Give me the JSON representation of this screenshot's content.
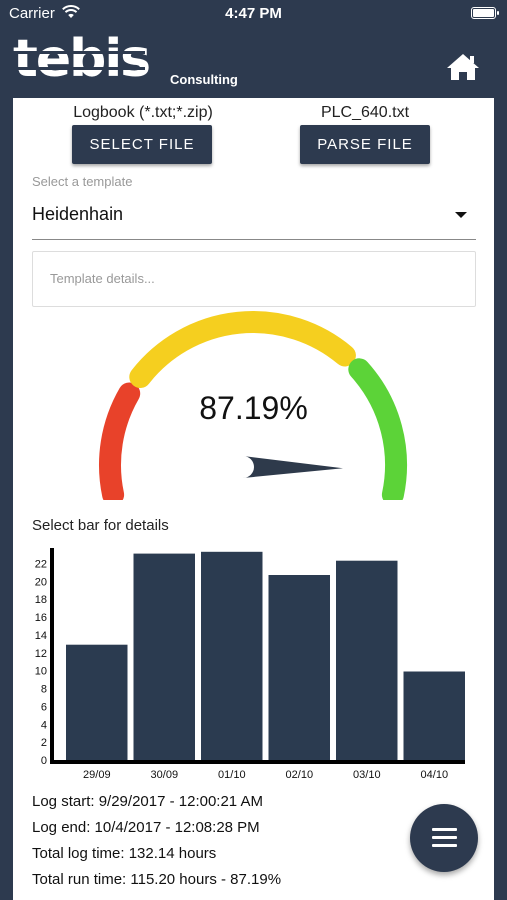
{
  "status_bar": {
    "carrier": "Carrier",
    "time": "4:47 PM"
  },
  "header": {
    "logo": "tebis",
    "subtitle": "Consulting"
  },
  "files": {
    "logbook_label": "Logbook (*.txt;*.zip)",
    "select_button": "SELECT FILE",
    "plc_label": "PLC_640.txt",
    "parse_button": "PARSE FILE"
  },
  "template": {
    "label": "Select a template",
    "selected": "Heidenhain",
    "details_placeholder": "Template details..."
  },
  "gauge": {
    "value_text": "87.19%",
    "value": 87.19,
    "colors": {
      "red": "#e8422a",
      "yellow": "#f5cf1f",
      "green": "#5cd338",
      "needle": "#2e3a4b"
    }
  },
  "chart_caption": "Select bar for details",
  "chart_data": {
    "type": "bar",
    "categories": [
      "29/09",
      "30/09",
      "01/10",
      "02/10",
      "03/10",
      "04/10"
    ],
    "values": [
      12.9,
      23.1,
      23.3,
      20.7,
      22.3,
      9.9
    ],
    "ylim": [
      0,
      23.5
    ],
    "yticks": [
      0,
      2,
      4,
      6,
      8,
      10,
      12,
      14,
      16,
      18,
      20,
      22
    ],
    "color": "#2b3b50"
  },
  "log": {
    "start": "Log start: 9/29/2017 - 12:00:21 AM",
    "end": "Log end: 10/4/2017 - 12:08:28 PM",
    "total": "Total log time: 132.14 hours",
    "run": "Total run time: 115.20 hours - 87.19%"
  }
}
